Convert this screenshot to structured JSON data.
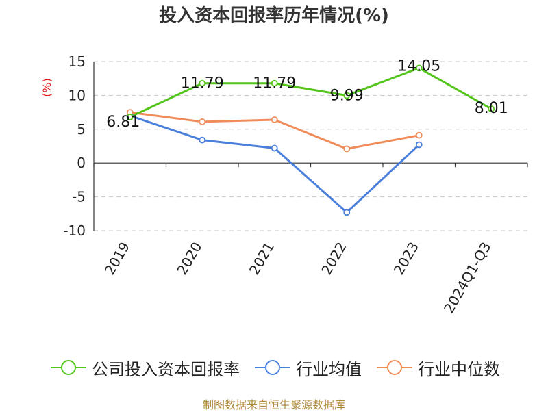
{
  "chart_data": {
    "type": "line",
    "title": "投入资本回报率历年情况(%)",
    "ylabel": "(%)",
    "xlabel": "",
    "categories": [
      "2019",
      "2020",
      "2021",
      "2022",
      "2023",
      "2024Q1-Q3"
    ],
    "yticks": [
      15,
      10,
      5,
      0,
      -5,
      -10
    ],
    "ylim": [
      -10,
      15
    ],
    "grid": true,
    "series": [
      {
        "name": "公司投入资本回报率",
        "color": "#52c41a",
        "values": [
          6.81,
          11.79,
          11.79,
          9.99,
          14.05,
          8.01
        ],
        "labels": [
          "6.81",
          "11.79",
          "11.79",
          "9.99",
          "14.05",
          "8.01"
        ]
      },
      {
        "name": "行业均值",
        "color": "#4a7fdc",
        "values": [
          7.0,
          3.4,
          2.2,
          -7.3,
          2.7,
          null
        ]
      },
      {
        "name": "行业中位数",
        "color": "#f08c5a",
        "values": [
          7.5,
          6.1,
          6.4,
          2.1,
          4.1,
          null
        ]
      }
    ],
    "legend_position": "bottom"
  },
  "source": "制图数据来自恒生聚源数据库"
}
